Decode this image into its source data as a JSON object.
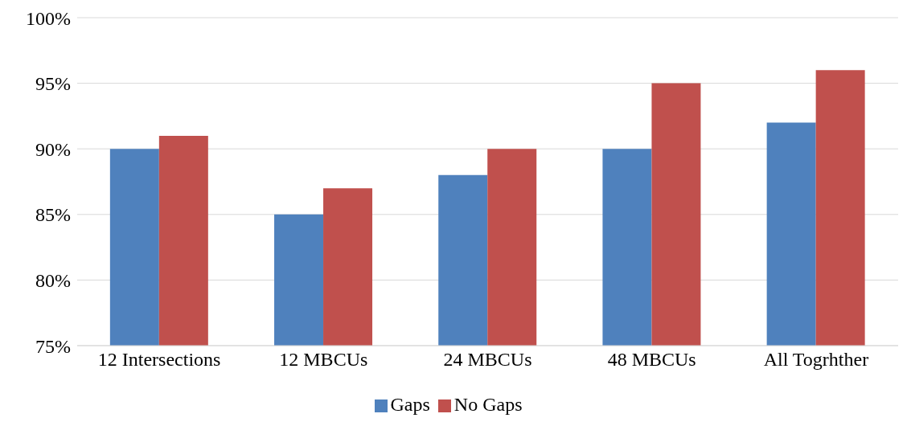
{
  "chart_data": {
    "type": "bar",
    "categories": [
      "12 Intersections",
      "12 MBCUs",
      "24 MBCUs",
      "48 MBCUs",
      "All Togrhther"
    ],
    "series": [
      {
        "name": "Gaps",
        "color": "#4f81bd",
        "values": [
          90,
          85,
          88,
          90,
          92
        ]
      },
      {
        "name": "No Gaps",
        "color": "#c0504d",
        "values": [
          91,
          87,
          90,
          95,
          96
        ]
      }
    ],
    "ylim": [
      75,
      100
    ],
    "yticks": [
      {
        "value": 75,
        "label": "75%"
      },
      {
        "value": 80,
        "label": "80%"
      },
      {
        "value": 85,
        "label": "85%"
      },
      {
        "value": 90,
        "label": "90%"
      },
      {
        "value": 95,
        "label": "95%"
      },
      {
        "value": 100,
        "label": "100%"
      }
    ],
    "grid": "y",
    "legend": "bottom"
  }
}
